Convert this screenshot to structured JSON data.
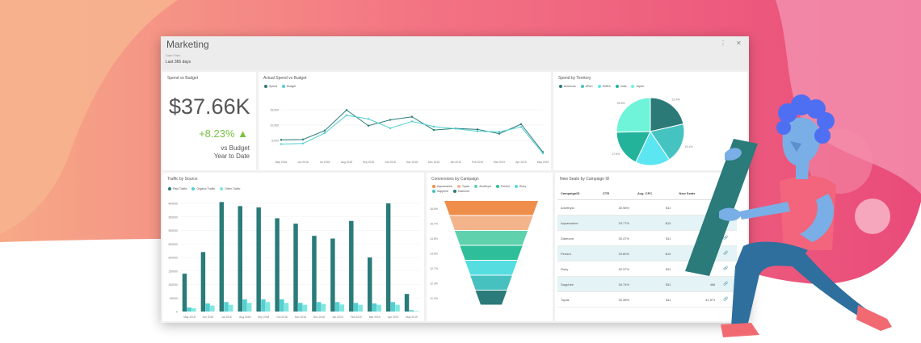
{
  "dashboard": {
    "title": "Marketing",
    "date_range_label": "Date Filter",
    "date_range_value": "Last 365 days",
    "menu_icon": "more-vert-icon",
    "close_icon": "close-icon"
  },
  "spend_vs_budget": {
    "title": "Spend vs Budget",
    "value": "$37.66K",
    "delta": "+8.23% ▲",
    "sub1": "vs Budget",
    "sub2": "Year to Date"
  },
  "actual_spend": {
    "title": "Actual Spend vs Budget",
    "legend": [
      "Spend",
      "Budget"
    ]
  },
  "territory": {
    "title": "Spend by Territory",
    "legend": [
      "Americas",
      "APAC",
      "EMEA",
      "India",
      "Japan"
    ]
  },
  "traffic": {
    "title": "Traffic by Source",
    "legend": [
      "Paid Traffic",
      "Organic Traffic",
      "Other Traffic"
    ]
  },
  "conversions": {
    "title": "Conversions by Campaign",
    "legend": [
      "Aquamarine",
      "Topaz",
      "Amethyst",
      "Peridot",
      "Ruby",
      "Sapphire",
      "Diamond"
    ]
  },
  "seats": {
    "title": "New Seats by Campaign ID",
    "columns": [
      "CampaignID",
      "CTR",
      "Avg. CPC",
      "New Seats"
    ],
    "rows": [
      [
        "Amethyst",
        "30.98%",
        "$11",
        "5"
      ],
      [
        "Aquamarine",
        "29.77%",
        "$10",
        ""
      ],
      [
        "Diamond",
        "30.47%",
        "$11",
        ""
      ],
      [
        "Peridot",
        "29.80%",
        "$10",
        ""
      ],
      [
        "Ruby",
        "30.37%",
        "$11",
        ""
      ],
      [
        "Sapphire",
        "30.74%",
        "$11",
        "466"
      ],
      [
        "Topaz",
        "30.36%",
        "$11",
        "41,571"
      ]
    ]
  },
  "chart_data": [
    {
      "type": "line",
      "title": "Actual Spend vs Budget",
      "categories": [
        "May 2018",
        "Jun 2018",
        "Jul 2018",
        "Aug 2018",
        "Sep 2018",
        "Oct 2018",
        "Nov 2018",
        "Dec 2018",
        "Jan 2019",
        "Feb 2019",
        "Mar 2019",
        "Apr 2019",
        "May 2019"
      ],
      "y_ticks": [
        "5,000",
        "10,000",
        "15,000"
      ],
      "ylim": [
        0,
        20000
      ],
      "series": [
        {
          "name": "Spend",
          "values": [
            5200,
            5300,
            8200,
            14900,
            9800,
            11700,
            12700,
            8400,
            8900,
            8600,
            7200,
            10300,
            1200
          ]
        },
        {
          "name": "Budget",
          "values": [
            3800,
            4000,
            7400,
            13200,
            12000,
            9000,
            11200,
            9500,
            8800,
            8000,
            7800,
            9400,
            800
          ]
        }
      ],
      "colors": {
        "Spend": "#2a7b79",
        "Budget": "#53cfd0"
      }
    },
    {
      "type": "pie",
      "title": "Spend by Territory",
      "labels": [
        "Americas",
        "APAC",
        "EMEA",
        "India",
        "Japan"
      ],
      "values": [
        21.4,
        19.1,
        16.6,
        17.6,
        25.3
      ],
      "slice_labels": [
        "21.4%",
        "19.1%",
        "16.6%",
        "17.6%",
        "25.3%"
      ],
      "colors": [
        "#2b7a78",
        "#45c3c0",
        "#5ce6f1",
        "#22b39a",
        "#6ff3d9"
      ]
    },
    {
      "type": "bar",
      "title": "Traffic by Source",
      "categories": [
        "May 2018",
        "Jun 2018",
        "Jul 2018",
        "Aug 2018",
        "Sep 2018",
        "Oct 2018",
        "Nov 2018",
        "Dec 2018",
        "Jan 2019",
        "Feb 2019",
        "Mar 2019",
        "Apr 2019",
        "May 2019"
      ],
      "y_ticks": [
        "0",
        "50000",
        "100000",
        "150000",
        "200000",
        "250000",
        "300000",
        "350000",
        "400000"
      ],
      "ylim": [
        0,
        400000
      ],
      "series": [
        {
          "name": "Paid Traffic",
          "values": [
            140000,
            220000,
            405000,
            390000,
            385000,
            345000,
            325000,
            280000,
            270000,
            335000,
            200000,
            400000,
            65000
          ]
        },
        {
          "name": "Organic Traffic",
          "values": [
            15000,
            30000,
            35000,
            45000,
            45000,
            45000,
            32000,
            35000,
            35000,
            32000,
            30000,
            35000,
            5000
          ]
        },
        {
          "name": "Other Traffic",
          "values": [
            12000,
            22000,
            25000,
            32000,
            35000,
            32000,
            25000,
            28000,
            26000,
            25000,
            25000,
            25000,
            2000
          ]
        }
      ],
      "colors": [
        "#2a7b79",
        "#53cfd0",
        "#7fe7e0"
      ]
    },
    {
      "type": "funnel",
      "title": "Conversions by Campaign",
      "labels": [
        "Aquamarine",
        "Topaz",
        "Amethyst",
        "Peridot",
        "Ruby",
        "Sapphire",
        "Diamond"
      ],
      "values": [
        18.8,
        15.7,
        14.8,
        13.6,
        12.7,
        12.3,
        11.2
      ],
      "value_labels": [
        "18.8%",
        "15.7%",
        "14.8%",
        "13.6%",
        "12.7%",
        "12.3%",
        "11.2%"
      ],
      "colors": [
        "#ef8d4a",
        "#f3b48c",
        "#5fd1ad",
        "#2ebf9a",
        "#56dde0",
        "#46c1c0",
        "#2a7b79"
      ]
    }
  ]
}
